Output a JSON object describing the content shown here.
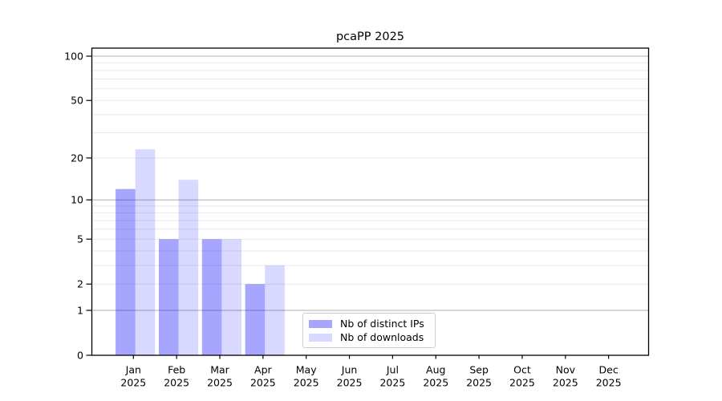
{
  "figure": {
    "background": "#ffffff"
  },
  "chart_data": {
    "type": "bar",
    "title": "pcaPP 2025",
    "categories": [
      "Jan",
      "Feb",
      "Mar",
      "Apr",
      "May",
      "Jun",
      "Jul",
      "Aug",
      "Sep",
      "Oct",
      "Nov",
      "Dec"
    ],
    "year_label": "2025",
    "series": [
      {
        "name": "Nb of distinct IPs",
        "color": "#0000ff",
        "fill_opacity": 0.35,
        "effective_hex": "#a6a6f6",
        "values": [
          12,
          5,
          5,
          2,
          0,
          0,
          0,
          0,
          0,
          0,
          0,
          0
        ]
      },
      {
        "name": "Nb of downloads",
        "color": "#0000ff",
        "fill_opacity": 0.15,
        "effective_hex": "#d9d9f8",
        "values": [
          23,
          14,
          5,
          3,
          0,
          0,
          0,
          0,
          0,
          0,
          0,
          0
        ]
      }
    ],
    "yscale": "log1p",
    "ylim": [
      0,
      113
    ],
    "yticks": [
      0,
      1,
      2,
      5,
      10,
      20,
      50,
      100
    ],
    "ytick_labels": [
      "0",
      "1",
      "2",
      "5",
      "10",
      "20",
      "50",
      "100"
    ],
    "grid": {
      "major_ticks": [
        1,
        10,
        100
      ],
      "minor_ticks": [
        2,
        3,
        4,
        5,
        6,
        7,
        8,
        9,
        20,
        30,
        40,
        50,
        60,
        70,
        80,
        90
      ],
      "major_color": "#b0b0b0",
      "minor_color": "#e9e9e9"
    },
    "axis_color": "#000000",
    "legend": {
      "position": "lower-center",
      "entries": [
        "Nb of distinct IPs",
        "Nb of downloads"
      ]
    }
  }
}
